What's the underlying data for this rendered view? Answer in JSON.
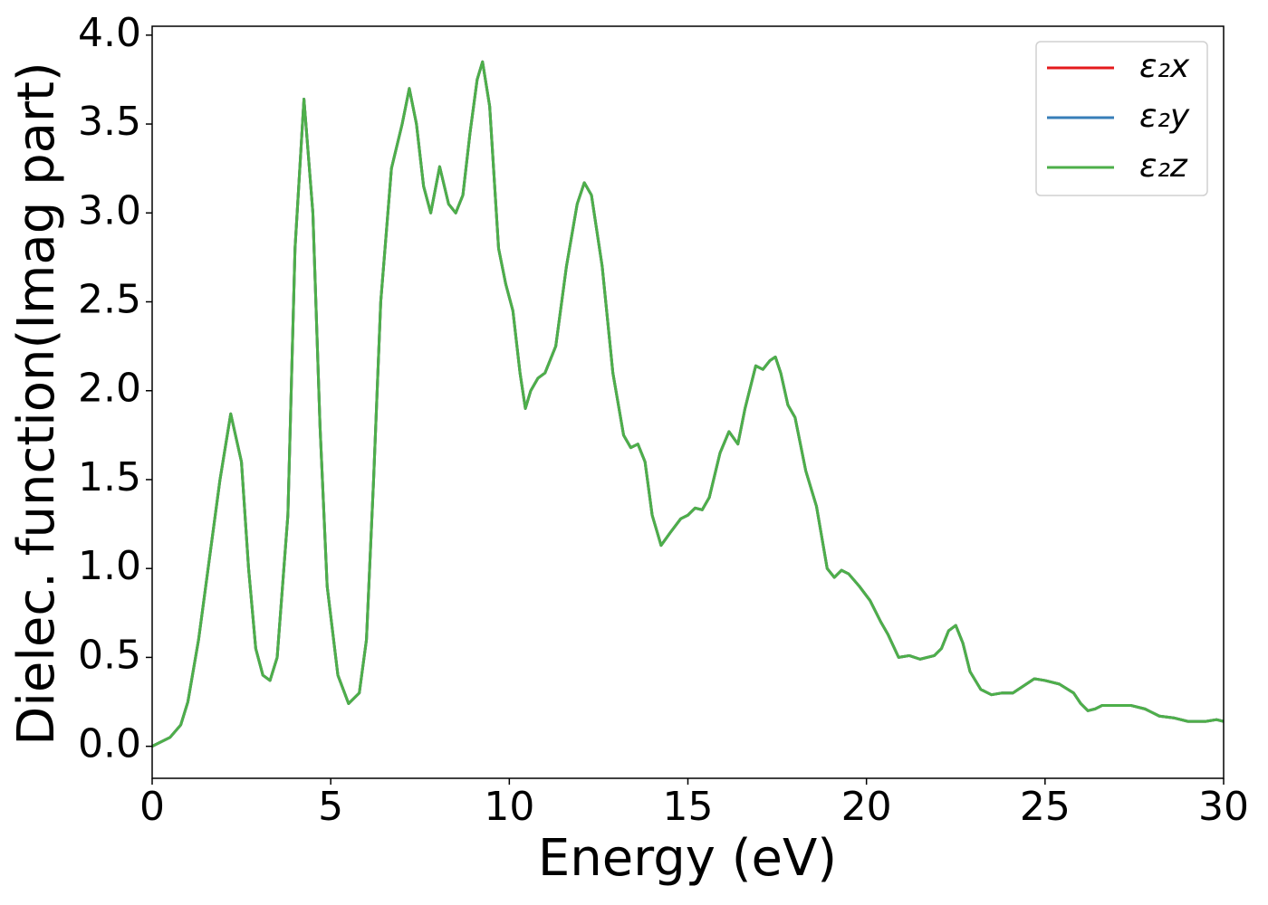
{
  "chart_data": {
    "type": "line",
    "xlabel": "Energy (eV)",
    "ylabel": "Dielec. function(Imag part)",
    "x": [
      0,
      0.5,
      0.8,
      1.0,
      1.3,
      1.6,
      1.9,
      2.2,
      2.5,
      2.7,
      2.9,
      3.1,
      3.3,
      3.5,
      3.8,
      4.0,
      4.25,
      4.5,
      4.7,
      4.9,
      5.2,
      5.5,
      5.8,
      6.0,
      6.2,
      6.4,
      6.7,
      7.0,
      7.2,
      7.4,
      7.6,
      7.8,
      8.05,
      8.3,
      8.5,
      8.7,
      8.9,
      9.1,
      9.25,
      9.45,
      9.7,
      9.9,
      10.1,
      10.3,
      10.45,
      10.6,
      10.8,
      11.0,
      11.3,
      11.6,
      11.9,
      12.1,
      12.3,
      12.6,
      12.9,
      13.2,
      13.4,
      13.6,
      13.8,
      14.0,
      14.25,
      14.5,
      14.8,
      15.0,
      15.2,
      15.4,
      15.6,
      15.9,
      16.15,
      16.4,
      16.6,
      16.9,
      17.1,
      17.3,
      17.45,
      17.6,
      17.8,
      18.0,
      18.3,
      18.6,
      18.9,
      19.1,
      19.3,
      19.5,
      19.8,
      20.1,
      20.4,
      20.6,
      20.9,
      21.2,
      21.5,
      21.9,
      22.1,
      22.3,
      22.5,
      22.7,
      22.9,
      23.2,
      23.5,
      23.8,
      24.1,
      24.4,
      24.7,
      25.0,
      25.4,
      25.8,
      26.0,
      26.2,
      26.4,
      26.6,
      27.0,
      27.4,
      27.8,
      28.2,
      28.6,
      29.0,
      29.5,
      29.8,
      30
    ],
    "series": [
      {
        "name": "ε₂x",
        "color": "#e41a1c",
        "values": [
          0.0,
          0.05,
          0.12,
          0.25,
          0.6,
          1.05,
          1.5,
          1.87,
          1.6,
          1.0,
          0.55,
          0.4,
          0.37,
          0.5,
          1.3,
          2.8,
          3.64,
          3.0,
          1.8,
          0.9,
          0.4,
          0.24,
          0.3,
          0.6,
          1.5,
          2.5,
          3.25,
          3.5,
          3.7,
          3.5,
          3.15,
          3.0,
          3.26,
          3.05,
          3.0,
          3.1,
          3.45,
          3.75,
          3.85,
          3.6,
          2.8,
          2.6,
          2.45,
          2.1,
          1.9,
          2.0,
          2.07,
          2.1,
          2.25,
          2.7,
          3.05,
          3.17,
          3.1,
          2.7,
          2.1,
          1.75,
          1.68,
          1.7,
          1.6,
          1.3,
          1.13,
          1.2,
          1.28,
          1.3,
          1.34,
          1.33,
          1.4,
          1.65,
          1.77,
          1.7,
          1.9,
          2.14,
          2.12,
          2.17,
          2.19,
          2.1,
          1.92,
          1.85,
          1.55,
          1.35,
          1.0,
          0.95,
          0.99,
          0.97,
          0.9,
          0.82,
          0.7,
          0.63,
          0.5,
          0.51,
          0.49,
          0.51,
          0.55,
          0.65,
          0.68,
          0.58,
          0.42,
          0.32,
          0.29,
          0.3,
          0.3,
          0.34,
          0.38,
          0.37,
          0.35,
          0.3,
          0.24,
          0.2,
          0.21,
          0.23,
          0.23,
          0.23,
          0.21,
          0.17,
          0.16,
          0.14,
          0.14,
          0.15,
          0.14
        ]
      },
      {
        "name": "ε₂y",
        "color": "#377eb8",
        "values": [
          0.0,
          0.05,
          0.12,
          0.25,
          0.6,
          1.05,
          1.5,
          1.87,
          1.6,
          1.0,
          0.55,
          0.4,
          0.37,
          0.5,
          1.3,
          2.8,
          3.64,
          3.0,
          1.8,
          0.9,
          0.4,
          0.24,
          0.3,
          0.6,
          1.5,
          2.5,
          3.25,
          3.5,
          3.7,
          3.5,
          3.15,
          3.0,
          3.26,
          3.05,
          3.0,
          3.1,
          3.45,
          3.75,
          3.85,
          3.6,
          2.8,
          2.6,
          2.45,
          2.1,
          1.9,
          2.0,
          2.07,
          2.1,
          2.25,
          2.7,
          3.05,
          3.17,
          3.1,
          2.7,
          2.1,
          1.75,
          1.68,
          1.7,
          1.6,
          1.3,
          1.13,
          1.2,
          1.28,
          1.3,
          1.34,
          1.33,
          1.4,
          1.65,
          1.77,
          1.7,
          1.9,
          2.14,
          2.12,
          2.17,
          2.19,
          2.1,
          1.92,
          1.85,
          1.55,
          1.35,
          1.0,
          0.95,
          0.99,
          0.97,
          0.9,
          0.82,
          0.7,
          0.63,
          0.5,
          0.51,
          0.49,
          0.51,
          0.55,
          0.65,
          0.68,
          0.58,
          0.42,
          0.32,
          0.29,
          0.3,
          0.3,
          0.34,
          0.38,
          0.37,
          0.35,
          0.3,
          0.24,
          0.2,
          0.21,
          0.23,
          0.23,
          0.23,
          0.21,
          0.17,
          0.16,
          0.14,
          0.14,
          0.15,
          0.14
        ]
      },
      {
        "name": "ε₂z",
        "color": "#4daf4a",
        "values": [
          0.0,
          0.05,
          0.12,
          0.25,
          0.6,
          1.05,
          1.5,
          1.87,
          1.6,
          1.0,
          0.55,
          0.4,
          0.37,
          0.5,
          1.3,
          2.8,
          3.64,
          3.0,
          1.8,
          0.9,
          0.4,
          0.24,
          0.3,
          0.6,
          1.5,
          2.5,
          3.25,
          3.5,
          3.7,
          3.5,
          3.15,
          3.0,
          3.26,
          3.05,
          3.0,
          3.1,
          3.45,
          3.75,
          3.85,
          3.6,
          2.8,
          2.6,
          2.45,
          2.1,
          1.9,
          2.0,
          2.07,
          2.1,
          2.25,
          2.7,
          3.05,
          3.17,
          3.1,
          2.7,
          2.1,
          1.75,
          1.68,
          1.7,
          1.6,
          1.3,
          1.13,
          1.2,
          1.28,
          1.3,
          1.34,
          1.33,
          1.4,
          1.65,
          1.77,
          1.7,
          1.9,
          2.14,
          2.12,
          2.17,
          2.19,
          2.1,
          1.92,
          1.85,
          1.55,
          1.35,
          1.0,
          0.95,
          0.99,
          0.97,
          0.9,
          0.82,
          0.7,
          0.63,
          0.5,
          0.51,
          0.49,
          0.51,
          0.55,
          0.65,
          0.68,
          0.58,
          0.42,
          0.32,
          0.29,
          0.3,
          0.3,
          0.34,
          0.38,
          0.37,
          0.35,
          0.3,
          0.24,
          0.2,
          0.21,
          0.23,
          0.23,
          0.23,
          0.21,
          0.17,
          0.16,
          0.14,
          0.14,
          0.15,
          0.14
        ]
      }
    ],
    "xlim": [
      0,
      30
    ],
    "xticks": [
      0,
      5,
      10,
      15,
      20,
      25,
      30
    ],
    "ylim": [
      -0.18,
      4.05
    ],
    "yticks": [
      {
        "value": 0,
        "label": "0.0"
      },
      0.5,
      {
        "value": 1,
        "label": "1.0"
      },
      1.5,
      {
        "value": 2,
        "label": "2.0"
      },
      2.5,
      {
        "value": 3,
        "label": "3.0"
      },
      3.5,
      {
        "value": 4,
        "label": "4.0"
      }
    ],
    "grid": false,
    "legend": "upper right"
  }
}
